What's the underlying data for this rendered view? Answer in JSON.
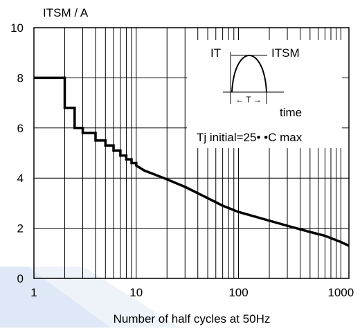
{
  "chart_data": {
    "type": "line",
    "title": "",
    "xlabel": "Number of half cycles at 50Hz",
    "ylabel": "ITSM / A",
    "x_scale": "log",
    "xlim": [
      1,
      1200
    ],
    "ylim": [
      0,
      10
    ],
    "xticks": [
      1,
      10,
      100,
      1000
    ],
    "xtick_labels": [
      "1",
      "10",
      "100",
      "1000"
    ],
    "yticks": [
      0,
      2,
      4,
      6,
      8,
      10
    ],
    "ytick_labels": [
      "0",
      "2",
      "4",
      "6",
      "8",
      "10"
    ],
    "grid": true,
    "series": [
      {
        "name": "",
        "x": [
          1,
          2,
          2,
          2.5,
          2.5,
          3,
          3,
          4,
          4,
          5,
          5,
          6,
          6,
          7,
          7,
          8,
          8,
          9,
          9,
          10,
          10,
          12,
          15,
          20,
          30,
          50,
          70,
          100,
          200,
          300,
          500,
          700,
          1000,
          1200
        ],
        "y": [
          8,
          8,
          6.8,
          6.8,
          6.0,
          6.0,
          5.8,
          5.8,
          5.5,
          5.5,
          5.3,
          5.3,
          5.1,
          5.1,
          4.9,
          4.9,
          4.75,
          4.75,
          4.6,
          4.6,
          4.5,
          4.3,
          4.15,
          3.95,
          3.65,
          3.2,
          2.9,
          2.65,
          2.3,
          2.1,
          1.85,
          1.7,
          1.45,
          1.3
        ]
      }
    ],
    "inset": {
      "label_it": "IT",
      "label_itsm": "ITSM",
      "period_label": "← T →",
      "time_label": "time",
      "condition": "Tj initial=25• •C max"
    }
  }
}
